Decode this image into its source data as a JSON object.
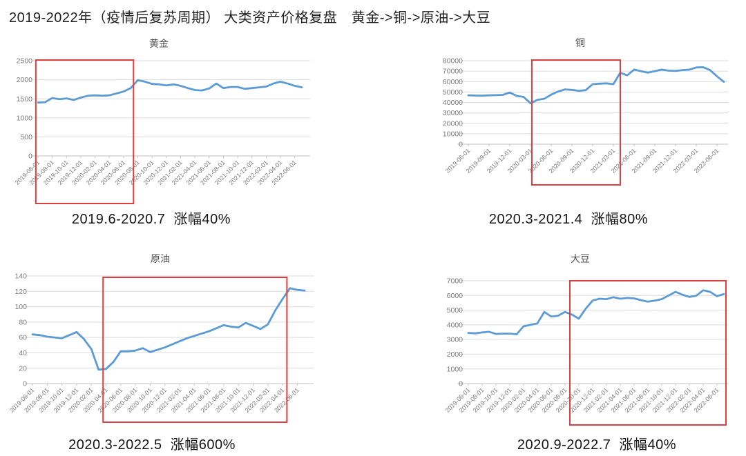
{
  "page": {
    "title": "2019-2022年（疫情后复苏周期） 大类资产价格复盘　黄金->铜->原油->大豆"
  },
  "colors": {
    "line": "#5B9BD5",
    "grid": "#DCDCDC",
    "axis": "#C0C0C0",
    "tick_label": "#7A7A7A",
    "highlight_box": "#DB4040",
    "caption_text": "#161616",
    "chart_title_text": "#4F4F4F"
  },
  "chart_data": [
    {
      "id": "gold",
      "type": "line",
      "title": "黄金",
      "x_start": "2019-06",
      "x_interval": "monthly",
      "tick_every_months": 2,
      "x_tick_labels": [
        "2019-06-01",
        "2019-08-01",
        "2019-10-01",
        "2019-12-01",
        "2020-02-01",
        "2020-04-01",
        "2020-06-01",
        "2020-08-01",
        "2020-10-01",
        "2020-12-01",
        "2021-02-01",
        "2021-04-01",
        "2021-06-01",
        "2021-08-01",
        "2021-10-01",
        "2021-12-01",
        "2022-02-01",
        "2022-04-01",
        "2022-06-01"
      ],
      "ylim": [
        0,
        2500
      ],
      "ystep": 500,
      "values": [
        1400,
        1410,
        1520,
        1490,
        1510,
        1470,
        1530,
        1580,
        1590,
        1580,
        1590,
        1640,
        1690,
        1780,
        1990,
        1950,
        1890,
        1880,
        1850,
        1880,
        1840,
        1780,
        1730,
        1720,
        1770,
        1900,
        1780,
        1810,
        1810,
        1760,
        1780,
        1800,
        1820,
        1900,
        1950,
        1900,
        1840,
        1800
      ],
      "highlight": {
        "from_month": -0.3,
        "to_month": 13.4,
        "period": "2019.6-2020.7",
        "gain": "40%"
      },
      "caption": "2019.6-2020.7  涨幅40%"
    },
    {
      "id": "copper",
      "type": "line",
      "title": "铜",
      "x_start": "2019-06",
      "x_interval": "monthly",
      "tick_every_months": 3,
      "x_tick_labels": [
        "2019-06-01",
        "2019-09-01",
        "2019-12-01",
        "2020-03-01",
        "2020-06-01",
        "2020-09-01",
        "2020-12-01",
        "2021-03-01",
        "2021-06-01",
        "2021-09-01",
        "2021-12-01",
        "2022-03-01",
        "2022-06-01"
      ],
      "ylim": [
        0,
        80000
      ],
      "ystep": 10000,
      "values": [
        46800,
        46600,
        46500,
        46800,
        47000,
        47300,
        49500,
        46300,
        45300,
        39200,
        42500,
        43600,
        47500,
        50500,
        52500,
        52000,
        51200,
        51800,
        57500,
        58000,
        58300,
        57500,
        68500,
        66000,
        71500,
        70000,
        68500,
        70000,
        71500,
        70500,
        70200,
        71000,
        71500,
        73500,
        73800,
        71000,
        65000,
        59800
      ],
      "highlight": {
        "from_month": 9.2,
        "to_month": 22.0,
        "period": "2020.3-2021.4",
        "gain": "80%"
      },
      "caption": "2020.3-2021.4  涨幅80%"
    },
    {
      "id": "crude-oil",
      "type": "line",
      "title": "原油",
      "x_start": "2019-06",
      "x_interval": "monthly",
      "tick_every_months": 2,
      "x_tick_labels": [
        "2019-06-01",
        "2019-08-01",
        "2019-10-01",
        "2019-12-01",
        "2020-02-01",
        "2020-04-01",
        "2020-06-01",
        "2020-08-01",
        "2020-10-01",
        "2020-12-01",
        "2021-02-01",
        "2021-04-01",
        "2021-06-01",
        "2021-08-01",
        "2021-10-01",
        "2021-12-01",
        "2022-02-01",
        "2022-04-01",
        "2022-06-01"
      ],
      "ylim": [
        0,
        140
      ],
      "ystep": 20,
      "values": [
        64,
        63,
        61,
        60,
        59,
        63,
        67,
        58,
        45,
        18,
        19,
        28,
        42,
        42,
        43,
        46,
        41,
        44,
        47,
        51,
        55,
        59,
        62,
        65,
        68,
        72,
        76,
        74,
        73,
        79,
        75,
        71,
        77,
        95,
        110,
        124,
        122,
        121
      ],
      "highlight": {
        "from_month": 9.6,
        "to_month": 34.6,
        "period": "2020.3-2022.5",
        "gain": "600%"
      },
      "caption": "2020.3-2022.5  涨幅600%"
    },
    {
      "id": "soybean",
      "type": "line",
      "title": "大豆",
      "x_start": "2019-06",
      "x_interval": "monthly",
      "tick_every_months": 2,
      "x_tick_labels": [
        "2019-06-01",
        "2019-08-01",
        "2019-10-01",
        "2019-12-01",
        "2020-02-01",
        "2020-04-01",
        "2020-06-01",
        "2020-08-01",
        "2020-10-01",
        "2020-12-01",
        "2021-02-01",
        "2021-04-01",
        "2021-06-01",
        "2021-08-01",
        "2021-10-01",
        "2021-12-01",
        "2022-02-01",
        "2022-04-01",
        "2022-06-01"
      ],
      "ylim": [
        0,
        7000
      ],
      "ystep": 1000,
      "values": [
        3450,
        3420,
        3480,
        3530,
        3380,
        3400,
        3400,
        3360,
        3900,
        4000,
        4100,
        4880,
        4560,
        4620,
        4880,
        4700,
        4420,
        5100,
        5650,
        5780,
        5750,
        5880,
        5780,
        5830,
        5800,
        5680,
        5580,
        5650,
        5750,
        6000,
        6250,
        6050,
        5900,
        5980,
        6350,
        6250,
        5950,
        6100
      ],
      "highlight": {
        "from_month": 14.7,
        "to_month": 37.3,
        "period": "2020.9-2022.7",
        "gain": "40%"
      },
      "caption": "2020.9-2022.7  涨幅40%"
    }
  ]
}
